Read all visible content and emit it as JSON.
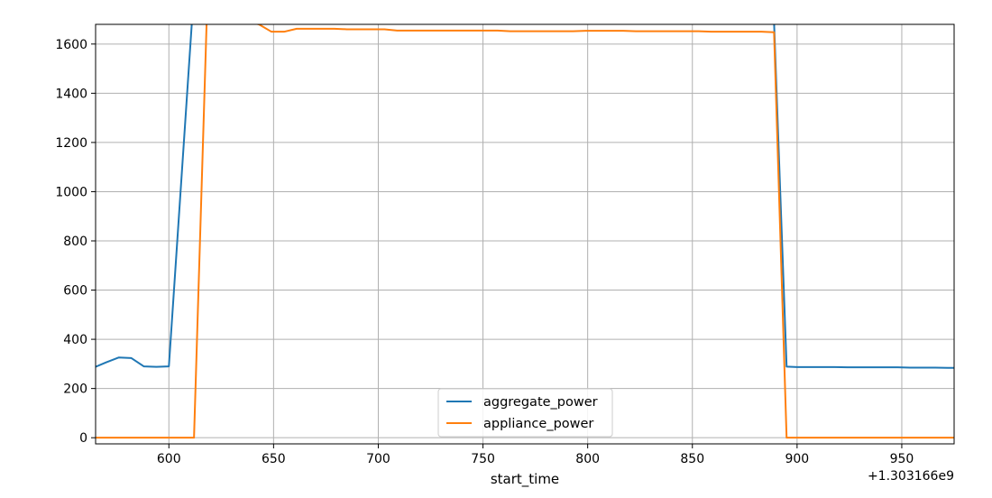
{
  "chart_data": {
    "type": "line",
    "title": "",
    "xlabel": "start_time",
    "ylabel": "",
    "x_offset_label": "+1.303166e9",
    "xlim": [
      565,
      975
    ],
    "ylim": [
      -25,
      1680
    ],
    "x_ticks": [
      600,
      650,
      700,
      750,
      800,
      850,
      900,
      950
    ],
    "x_tick_labels": [
      "600",
      "650",
      "700",
      "750",
      "800",
      "850",
      "900",
      "950"
    ],
    "y_ticks": [
      0,
      200,
      400,
      600,
      800,
      1000,
      1200,
      1400,
      1600
    ],
    "y_tick_labels": [
      "0",
      "200",
      "400",
      "600",
      "800",
      "1000",
      "1200",
      "1400",
      "1600"
    ],
    "grid": true,
    "legend_position": "bottom-center",
    "series": [
      {
        "name": "aggregate_power",
        "color": "#1f77b4",
        "x": [
          565,
          570,
          576,
          582,
          588,
          594,
          600,
          611,
          617,
          884,
          889,
          895,
          900,
          906,
          912,
          918,
          924,
          930,
          936,
          942,
          948,
          954,
          960,
          966,
          972,
          975
        ],
        "y": [
          288,
          306,
          326,
          324,
          290,
          288,
          290,
          1690,
          1720,
          1720,
          1690,
          289,
          287,
          287,
          287,
          287,
          286,
          286,
          286,
          286,
          286,
          285,
          285,
          285,
          284,
          284
        ]
      },
      {
        "name": "appliance_power",
        "color": "#ff7f0e",
        "x": [
          565,
          570,
          576,
          582,
          588,
          594,
          600,
          606,
          612,
          618,
          625,
          643,
          649,
          655,
          661,
          667,
          673,
          679,
          685,
          691,
          697,
          703,
          709,
          715,
          721,
          727,
          733,
          739,
          745,
          751,
          757,
          763,
          769,
          775,
          781,
          787,
          793,
          799,
          805,
          811,
          817,
          823,
          829,
          835,
          841,
          847,
          853,
          859,
          865,
          871,
          877,
          883,
          889,
          895,
          900,
          906,
          912,
          918,
          924,
          930,
          936,
          942,
          948,
          954,
          960,
          966,
          972,
          975
        ],
        "y": [
          0,
          0,
          0,
          0,
          0,
          0,
          0,
          0,
          0,
          1680,
          1720,
          1680,
          1650,
          1650,
          1662,
          1662,
          1662,
          1662,
          1660,
          1660,
          1660,
          1660,
          1655,
          1655,
          1655,
          1655,
          1655,
          1655,
          1655,
          1655,
          1655,
          1652,
          1652,
          1652,
          1652,
          1652,
          1652,
          1654,
          1654,
          1654,
          1654,
          1652,
          1652,
          1652,
          1652,
          1652,
          1652,
          1650,
          1650,
          1650,
          1650,
          1650,
          1648,
          0,
          0,
          0,
          0,
          0,
          0,
          0,
          0,
          0,
          0,
          0,
          0,
          0,
          0,
          0
        ]
      }
    ]
  }
}
